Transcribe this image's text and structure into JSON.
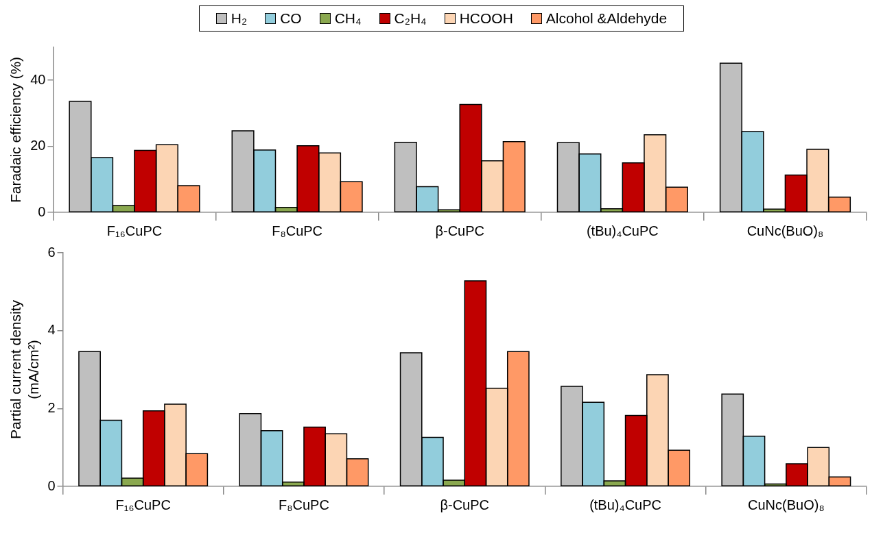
{
  "chart_data": [
    {
      "type": "bar",
      "ylabel": "Faradaic efficiency (%)",
      "categories": [
        "F₁₆CuPC",
        "F₈CuPC",
        "β-CuPC",
        "(tBu)₄CuPC",
        "CuNc(BuO)₈"
      ],
      "ylim": [
        0,
        50
      ],
      "yticks": [
        0,
        20,
        40
      ],
      "grid": false,
      "legend": "top",
      "series": [
        {
          "name": "H₂",
          "color": "#bfbfbf",
          "values": [
            33.6,
            24.7,
            21.2,
            21.1,
            45.2
          ]
        },
        {
          "name": "CO",
          "color": "#92cddc",
          "values": [
            16.6,
            18.9,
            7.8,
            17.7,
            24.5
          ]
        },
        {
          "name": "CH₄",
          "color": "#8aa84f",
          "values": [
            2.1,
            1.5,
            0.8,
            1.1,
            1.0
          ]
        },
        {
          "name": "C₂H₄",
          "color": "#c00000",
          "values": [
            18.8,
            20.2,
            32.7,
            15.0,
            11.3
          ]
        },
        {
          "name": "HCOOH",
          "color": "#fcd5b4",
          "values": [
            20.5,
            18.0,
            15.6,
            23.5,
            19.1
          ]
        },
        {
          "name": "Alcohol &Aldehyde",
          "color": "#ff9966",
          "values": [
            8.1,
            9.3,
            21.4,
            7.6,
            4.6
          ]
        }
      ]
    },
    {
      "type": "bar",
      "ylabel": "Partial current density (mA/cm²)",
      "categories": [
        "F₁₆CuPC",
        "F₈CuPC",
        "β-CuPC",
        "(tBu)₄CuPC",
        "CuNc(BuO)₈"
      ],
      "ylim": [
        0,
        6
      ],
      "yticks": [
        0,
        2,
        4,
        6
      ],
      "grid": false,
      "legend": false,
      "series": [
        {
          "color": "#bfbfbf",
          "values": [
            3.46,
            1.87,
            3.43,
            2.57,
            2.37
          ]
        },
        {
          "color": "#92cddc",
          "values": [
            1.7,
            1.43,
            1.26,
            2.16,
            1.29
          ]
        },
        {
          "color": "#8aa84f",
          "values": [
            0.21,
            0.11,
            0.16,
            0.14,
            0.06
          ]
        },
        {
          "color": "#c00000",
          "values": [
            1.94,
            1.52,
            5.28,
            1.82,
            0.58
          ]
        },
        {
          "color": "#fcd5b4",
          "values": [
            2.11,
            1.35,
            2.52,
            2.87,
            1.0
          ]
        },
        {
          "color": "#ff9966",
          "values": [
            0.84,
            0.71,
            3.46,
            0.93,
            0.24
          ]
        }
      ]
    }
  ]
}
